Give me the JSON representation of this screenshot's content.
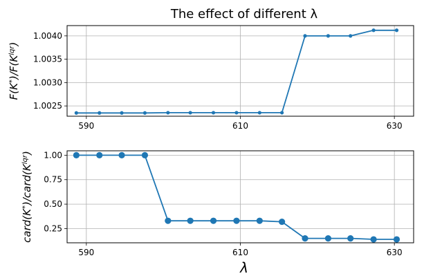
{
  "chart_data": [
    {
      "type": "line",
      "title": "The effect of different λ",
      "xlabel": "",
      "ylabel": "F(K*)/F(K^lqr)",
      "ylabel_main": "F(K",
      "ylabel_star": "*",
      "ylabel_mid": ")/F(K",
      "ylabel_sup": "lqr",
      "ylabel_end": ")",
      "x_ticks": [
        "590",
        "610",
        "630"
      ],
      "y_ticks": [
        "1.0025",
        "1.0030",
        "1.0035",
        "1.0040"
      ],
      "xlim": [
        587.5,
        632.5
      ],
      "ylim": [
        1.00228,
        1.00422
      ],
      "grid": true,
      "color": "#1f77b4",
      "x": [
        588.7,
        591.7,
        594.6,
        597.6,
        600.6,
        603.5,
        606.5,
        609.5,
        612.5,
        615.4,
        618.4,
        621.4,
        624.3,
        627.3,
        630.3
      ],
      "y": [
        1.00235,
        1.00235,
        1.00235,
        1.00235,
        1.002355,
        1.002355,
        1.002355,
        1.002355,
        1.002355,
        1.002355,
        1.004,
        1.004,
        1.004,
        1.00412,
        1.00412
      ]
    },
    {
      "type": "line",
      "title": "",
      "xlabel": "λ",
      "ylabel": "card(K*)/card(K^lqr)",
      "ylabel_main": "card(K",
      "ylabel_star": "*",
      "ylabel_mid": ")/card(K",
      "ylabel_sup": "lqr",
      "ylabel_end": ")",
      "x_ticks": [
        "590",
        "610",
        "630"
      ],
      "y_ticks": [
        "0.25",
        "0.50",
        "0.75",
        "1.00"
      ],
      "xlim": [
        587.5,
        632.5
      ],
      "ylim": [
        0.105,
        1.045
      ],
      "grid": true,
      "color": "#1f77b4",
      "x": [
        588.7,
        591.7,
        594.6,
        597.6,
        600.6,
        603.5,
        606.5,
        609.5,
        612.5,
        615.4,
        618.4,
        621.4,
        624.3,
        627.3,
        630.3
      ],
      "y": [
        1.0,
        1.0,
        1.0,
        1.0,
        0.33,
        0.33,
        0.33,
        0.33,
        0.33,
        0.32,
        0.15,
        0.15,
        0.15,
        0.14,
        0.14
      ]
    }
  ]
}
